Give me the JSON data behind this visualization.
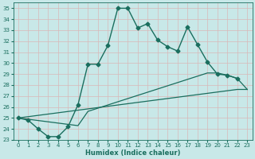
{
  "xlabel": "Humidex (Indice chaleur)",
  "bg_color": "#c8e8e8",
  "grid_color": "#b0d0d0",
  "line_color": "#1a6e5e",
  "xlim": [
    -0.5,
    23.5
  ],
  "ylim": [
    23,
    35.5
  ],
  "xticks": [
    0,
    1,
    2,
    3,
    4,
    5,
    6,
    7,
    8,
    9,
    10,
    11,
    12,
    13,
    14,
    15,
    16,
    17,
    18,
    19,
    20,
    21,
    22,
    23
  ],
  "yticks": [
    23,
    24,
    25,
    26,
    27,
    28,
    29,
    30,
    31,
    32,
    33,
    34,
    35
  ],
  "lines": [
    {
      "x": [
        0,
        1,
        2,
        3,
        4,
        5,
        6,
        7,
        8,
        9,
        10,
        11,
        12,
        13,
        14,
        15,
        16,
        17,
        18,
        19,
        20,
        21,
        22
      ],
      "y": [
        25.0,
        24.8,
        24.0,
        23.3,
        23.3,
        24.2,
        26.2,
        29.9,
        29.9,
        31.6,
        35.0,
        35.0,
        33.2,
        33.6,
        32.1,
        31.5,
        31.1,
        33.3,
        31.7,
        30.1,
        29.0,
        28.9,
        28.6
      ],
      "marker": "D",
      "markersize": 2.5,
      "linewidth": 1.0
    },
    {
      "x": [
        0,
        6,
        7,
        19,
        20,
        21,
        22,
        23
      ],
      "y": [
        25.0,
        24.3,
        25.6,
        29.1,
        29.1,
        28.9,
        28.6,
        27.6
      ],
      "marker": null,
      "markersize": 0,
      "linewidth": 0.9
    },
    {
      "x": [
        0,
        22,
        23
      ],
      "y": [
        25.0,
        27.6,
        27.6
      ],
      "marker": null,
      "markersize": 0,
      "linewidth": 0.9
    }
  ]
}
